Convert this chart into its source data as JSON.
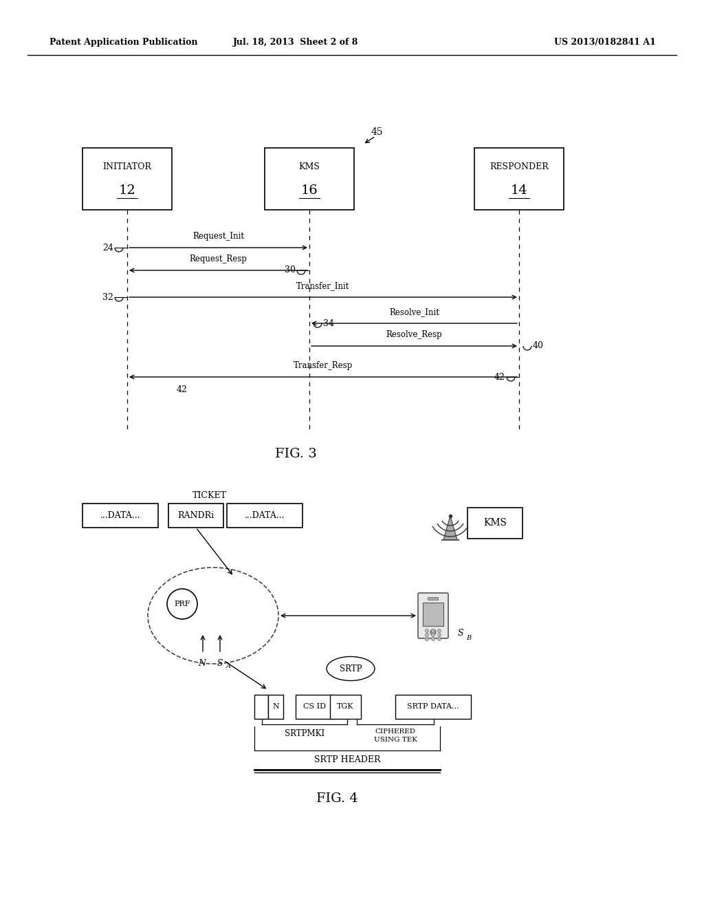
{
  "header_left": "Patent Application Publication",
  "header_mid": "Jul. 18, 2013  Sheet 2 of 8",
  "header_right": "US 2013/0182841 A1",
  "fig3_label": "FIG. 3",
  "fig4_label": "FIG. 4",
  "bg_color": "#ffffff"
}
